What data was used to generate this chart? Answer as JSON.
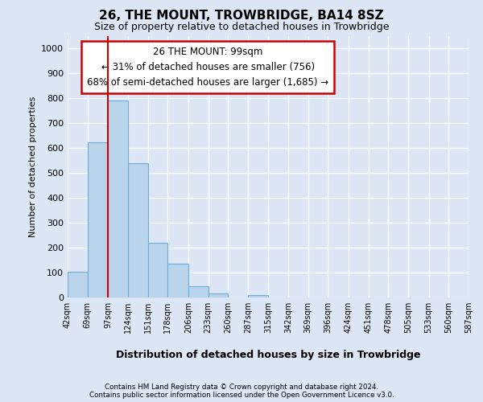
{
  "title": "26, THE MOUNT, TROWBRIDGE, BA14 8SZ",
  "subtitle": "Size of property relative to detached houses in Trowbridge",
  "xlabel": "Distribution of detached houses by size in Trowbridge",
  "ylabel": "Number of detached properties",
  "footer_line1": "Contains HM Land Registry data © Crown copyright and database right 2024.",
  "footer_line2": "Contains public sector information licensed under the Open Government Licence v3.0.",
  "annotation_line1": "26 THE MOUNT: 99sqm",
  "annotation_line2": "← 31% of detached houses are smaller (756)",
  "annotation_line3": "68% of semi-detached houses are larger (1,685) →",
  "bin_edges": [
    42,
    69,
    97,
    124,
    151,
    178,
    206,
    233,
    260,
    287,
    315,
    342,
    369,
    396,
    424,
    451,
    478,
    505,
    533,
    560,
    587
  ],
  "bar_heights": [
    105,
    625,
    790,
    540,
    220,
    135,
    45,
    15,
    0,
    10,
    0,
    0,
    0,
    0,
    0,
    0,
    0,
    0,
    0,
    0
  ],
  "bar_color": "#bad4ec",
  "bar_edge_color": "#6baed6",
  "vline_color": "#cc0000",
  "vline_x": 97,
  "ylim": [
    0,
    1050
  ],
  "yticks": [
    0,
    100,
    200,
    300,
    400,
    500,
    600,
    700,
    800,
    900,
    1000
  ],
  "background_color": "#dce6f5",
  "grid_color": "#ffffff",
  "annotation_box_facecolor": "#ffffff",
  "annotation_box_edgecolor": "#cc0000"
}
